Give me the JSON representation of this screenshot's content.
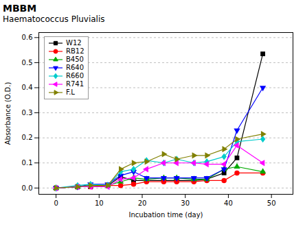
{
  "chart_data": {
    "type": "line",
    "title": "MBBM",
    "subtitle": "Haematococcus Pluvialis",
    "xlabel": "Incubation time (day)",
    "ylabel": "Absorbance (O.D.)",
    "xlim": [
      -4,
      55
    ],
    "ylim": [
      -0.025,
      0.62
    ],
    "xticks": [
      0,
      10,
      20,
      30,
      40,
      50
    ],
    "yticks": [
      {
        "value": 0,
        "label": "0.0"
      },
      0.1,
      0.2,
      0.3,
      0.4,
      0.5,
      0.6
    ],
    "grid": "y",
    "legend": "upper left",
    "x": [
      0,
      5,
      8,
      12,
      15,
      18,
      21,
      25,
      28,
      32,
      35,
      39,
      42,
      48
    ],
    "series": [
      {
        "name": "W12",
        "color": "#000000",
        "marker": "square",
        "values": [
          0.0,
          0.005,
          0.005,
          0.01,
          0.045,
          0.03,
          0.03,
          0.03,
          0.03,
          0.03,
          0.035,
          0.06,
          0.12,
          0.535
        ]
      },
      {
        "name": "RB12",
        "color": "#ff0000",
        "marker": "circle",
        "values": [
          0.0,
          0.005,
          0.005,
          0.01,
          0.01,
          0.015,
          0.025,
          0.025,
          0.025,
          0.025,
          0.03,
          0.03,
          0.06,
          0.06
        ]
      },
      {
        "name": "B450",
        "color": "#00aa00",
        "marker": "triangle-up",
        "values": [
          0.0,
          0.005,
          0.01,
          0.01,
          0.025,
          0.04,
          0.035,
          0.04,
          0.04,
          0.035,
          0.035,
          0.075,
          0.085,
          0.065
        ]
      },
      {
        "name": "R640",
        "color": "#0000ff",
        "marker": "triangle-down",
        "values": [
          0.0,
          0.005,
          0.015,
          0.015,
          0.05,
          0.065,
          0.04,
          0.04,
          0.04,
          0.04,
          0.04,
          0.075,
          0.23,
          0.4
        ]
      },
      {
        "name": "R660",
        "color": "#00cccc",
        "marker": "diamond",
        "values": [
          0.0,
          0.01,
          0.015,
          0.01,
          0.065,
          0.075,
          0.11,
          0.1,
          0.115,
          0.1,
          0.105,
          0.125,
          0.185,
          0.195
        ]
      },
      {
        "name": "R741",
        "color": "#ff00ff",
        "marker": "triangle-left",
        "values": [
          0.0,
          0.005,
          0.005,
          0.005,
          0.035,
          0.04,
          0.075,
          0.1,
          0.1,
          0.1,
          0.095,
          0.095,
          0.17,
          0.1
        ]
      },
      {
        "name": "F.L",
        "color": "#808000",
        "marker": "triangle-right",
        "values": [
          0.0,
          0.005,
          0.01,
          0.01,
          0.075,
          0.1,
          0.105,
          0.135,
          0.115,
          0.13,
          0.13,
          0.155,
          0.195,
          0.215
        ]
      }
    ]
  }
}
